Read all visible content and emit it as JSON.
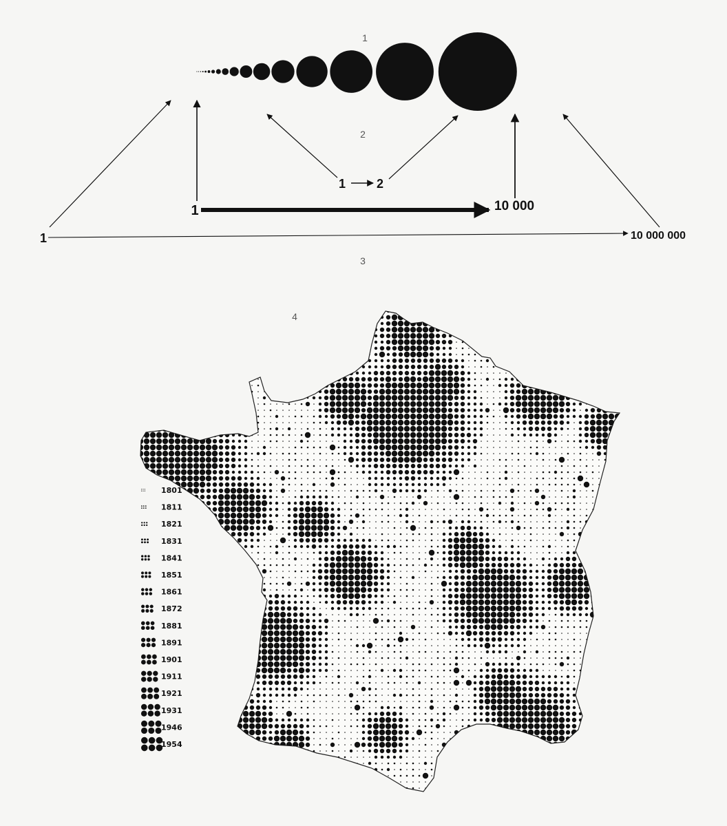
{
  "figure_numbers": [
    "1",
    "2",
    "3",
    "4"
  ],
  "scale_diagram": {
    "circle_sequence_count": 17,
    "ratio_small": {
      "from": "1",
      "to": "2"
    },
    "ratio_medium": {
      "from": "1",
      "to": "10 000"
    },
    "ratio_large": {
      "from": "1",
      "to": "10 000 000"
    }
  },
  "map": {
    "description_region": "France",
    "legend_years": [
      "1801",
      "1811",
      "1821",
      "1831",
      "1841",
      "1851",
      "1861",
      "1872",
      "1881",
      "1891",
      "1901",
      "1911",
      "1921",
      "1931",
      "1946",
      "1954"
    ]
  },
  "colors": {
    "ink": "#111111",
    "paper": "#f6f6f4",
    "figure_number": "#555555"
  }
}
